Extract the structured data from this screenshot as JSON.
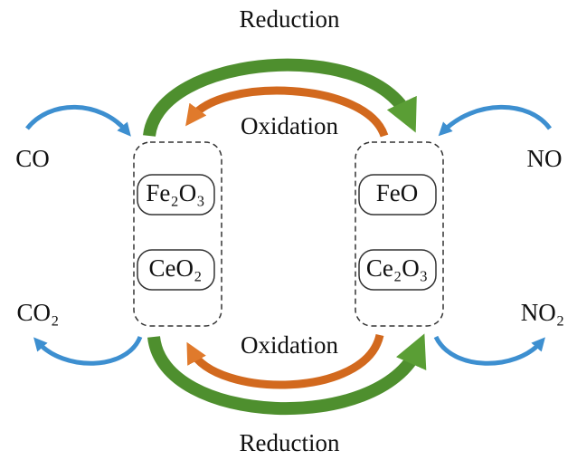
{
  "cycle_top": {
    "reduction": "Reduction",
    "oxidation": "Oxidation"
  },
  "cycle_bottom": {
    "oxidation": "Oxidation",
    "reduction": "Reduction"
  },
  "left": {
    "reactant": "CO",
    "product": "CO₂",
    "species": [
      "Fe₂O₃",
      "CeO₂"
    ]
  },
  "right": {
    "reactant": "NO",
    "product": "NO₂",
    "species": [
      "FeO",
      "Ce₂O₃"
    ]
  }
}
